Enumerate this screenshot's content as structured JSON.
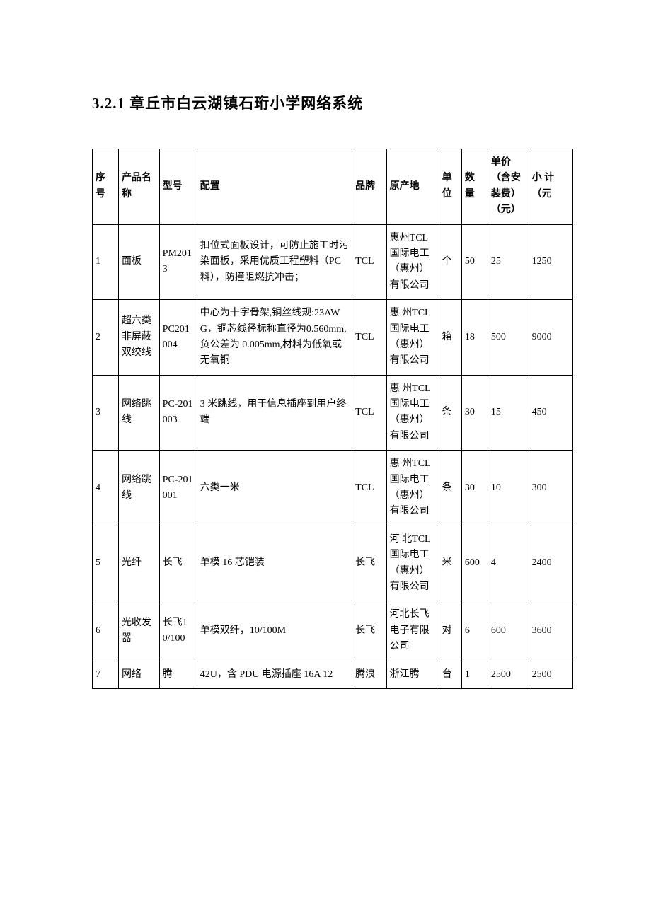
{
  "title": "3.2.1 章丘市白云湖镇石珩小学网络系统",
  "headers": {
    "seq": "序号",
    "name": "产品名称",
    "model": "型号",
    "spec": "配置",
    "brand": "品牌",
    "origin": "原产地",
    "unit": "单位",
    "qty": "数量",
    "price": "单价（含安装费）（元）",
    "subtotal": "小 计（元"
  },
  "rows": [
    {
      "seq": "1",
      "name": "面板",
      "model": "PM2013",
      "spec": "扣位式面板设计，可防止施工时污染面板，采用优质工程塑料（PC 料），防撞阻燃抗冲击；",
      "brand": "TCL",
      "origin": "惠州TCL 国际电工（惠州）有限公司",
      "unit": "个",
      "qty": "50",
      "price": "25",
      "subtotal": "1250"
    },
    {
      "seq": "2",
      "name": "超六类非屏蔽双绞线",
      "model": "PC201004",
      "spec": "中心为十字骨架,铜丝线规:23AWG，铜芯线径标称直径为0.560mm,负公差为 0.005mm,材料为低氧或无氧铜",
      "brand": "TCL",
      "origin": "惠 州TCL 国际电工（惠州）有限公司",
      "unit": "箱",
      "qty": "18",
      "price": "500",
      "subtotal": "9000"
    },
    {
      "seq": "3",
      "name": "网络跳线",
      "model": "PC-201003",
      "spec": "3 米跳线，用于信息插座到用户终端",
      "brand": "TCL",
      "origin": "惠 州TCL 国际电工（惠州）有限公司",
      "unit": "条",
      "qty": "30",
      "price": "15",
      "subtotal": "450"
    },
    {
      "seq": "4",
      "name": "网络跳线",
      "model": "PC-201001",
      "spec": "六类一米",
      "brand": "TCL",
      "origin": "惠 州TCL 国际电工（惠州）有限公司",
      "unit": "条",
      "qty": "30",
      "price": "10",
      "subtotal": "300"
    },
    {
      "seq": "5",
      "name": "光纤",
      "model": "长飞",
      "spec": "单模 16 芯铠装",
      "brand": "长飞",
      "origin": "河 北TCL 国际电工（惠州）有限公司",
      "unit": "米",
      "qty": "600",
      "price": "4",
      "subtotal": "2400"
    },
    {
      "seq": "6",
      "name": "光收发器",
      "model": "长飞10/100",
      "spec": "单模双纤，10/100M",
      "brand": "长飞",
      "origin": "河北长飞电子有限公司",
      "unit": "对",
      "qty": "6",
      "price": "600",
      "subtotal": "3600"
    },
    {
      "seq": "7",
      "name": "网络",
      "model": "腾",
      "spec": "42U，含 PDU 电源插座 16A  12",
      "brand": "腾浪",
      "origin": "浙江腾",
      "unit": "台",
      "qty": "1",
      "price": "2500",
      "subtotal": "2500"
    }
  ]
}
